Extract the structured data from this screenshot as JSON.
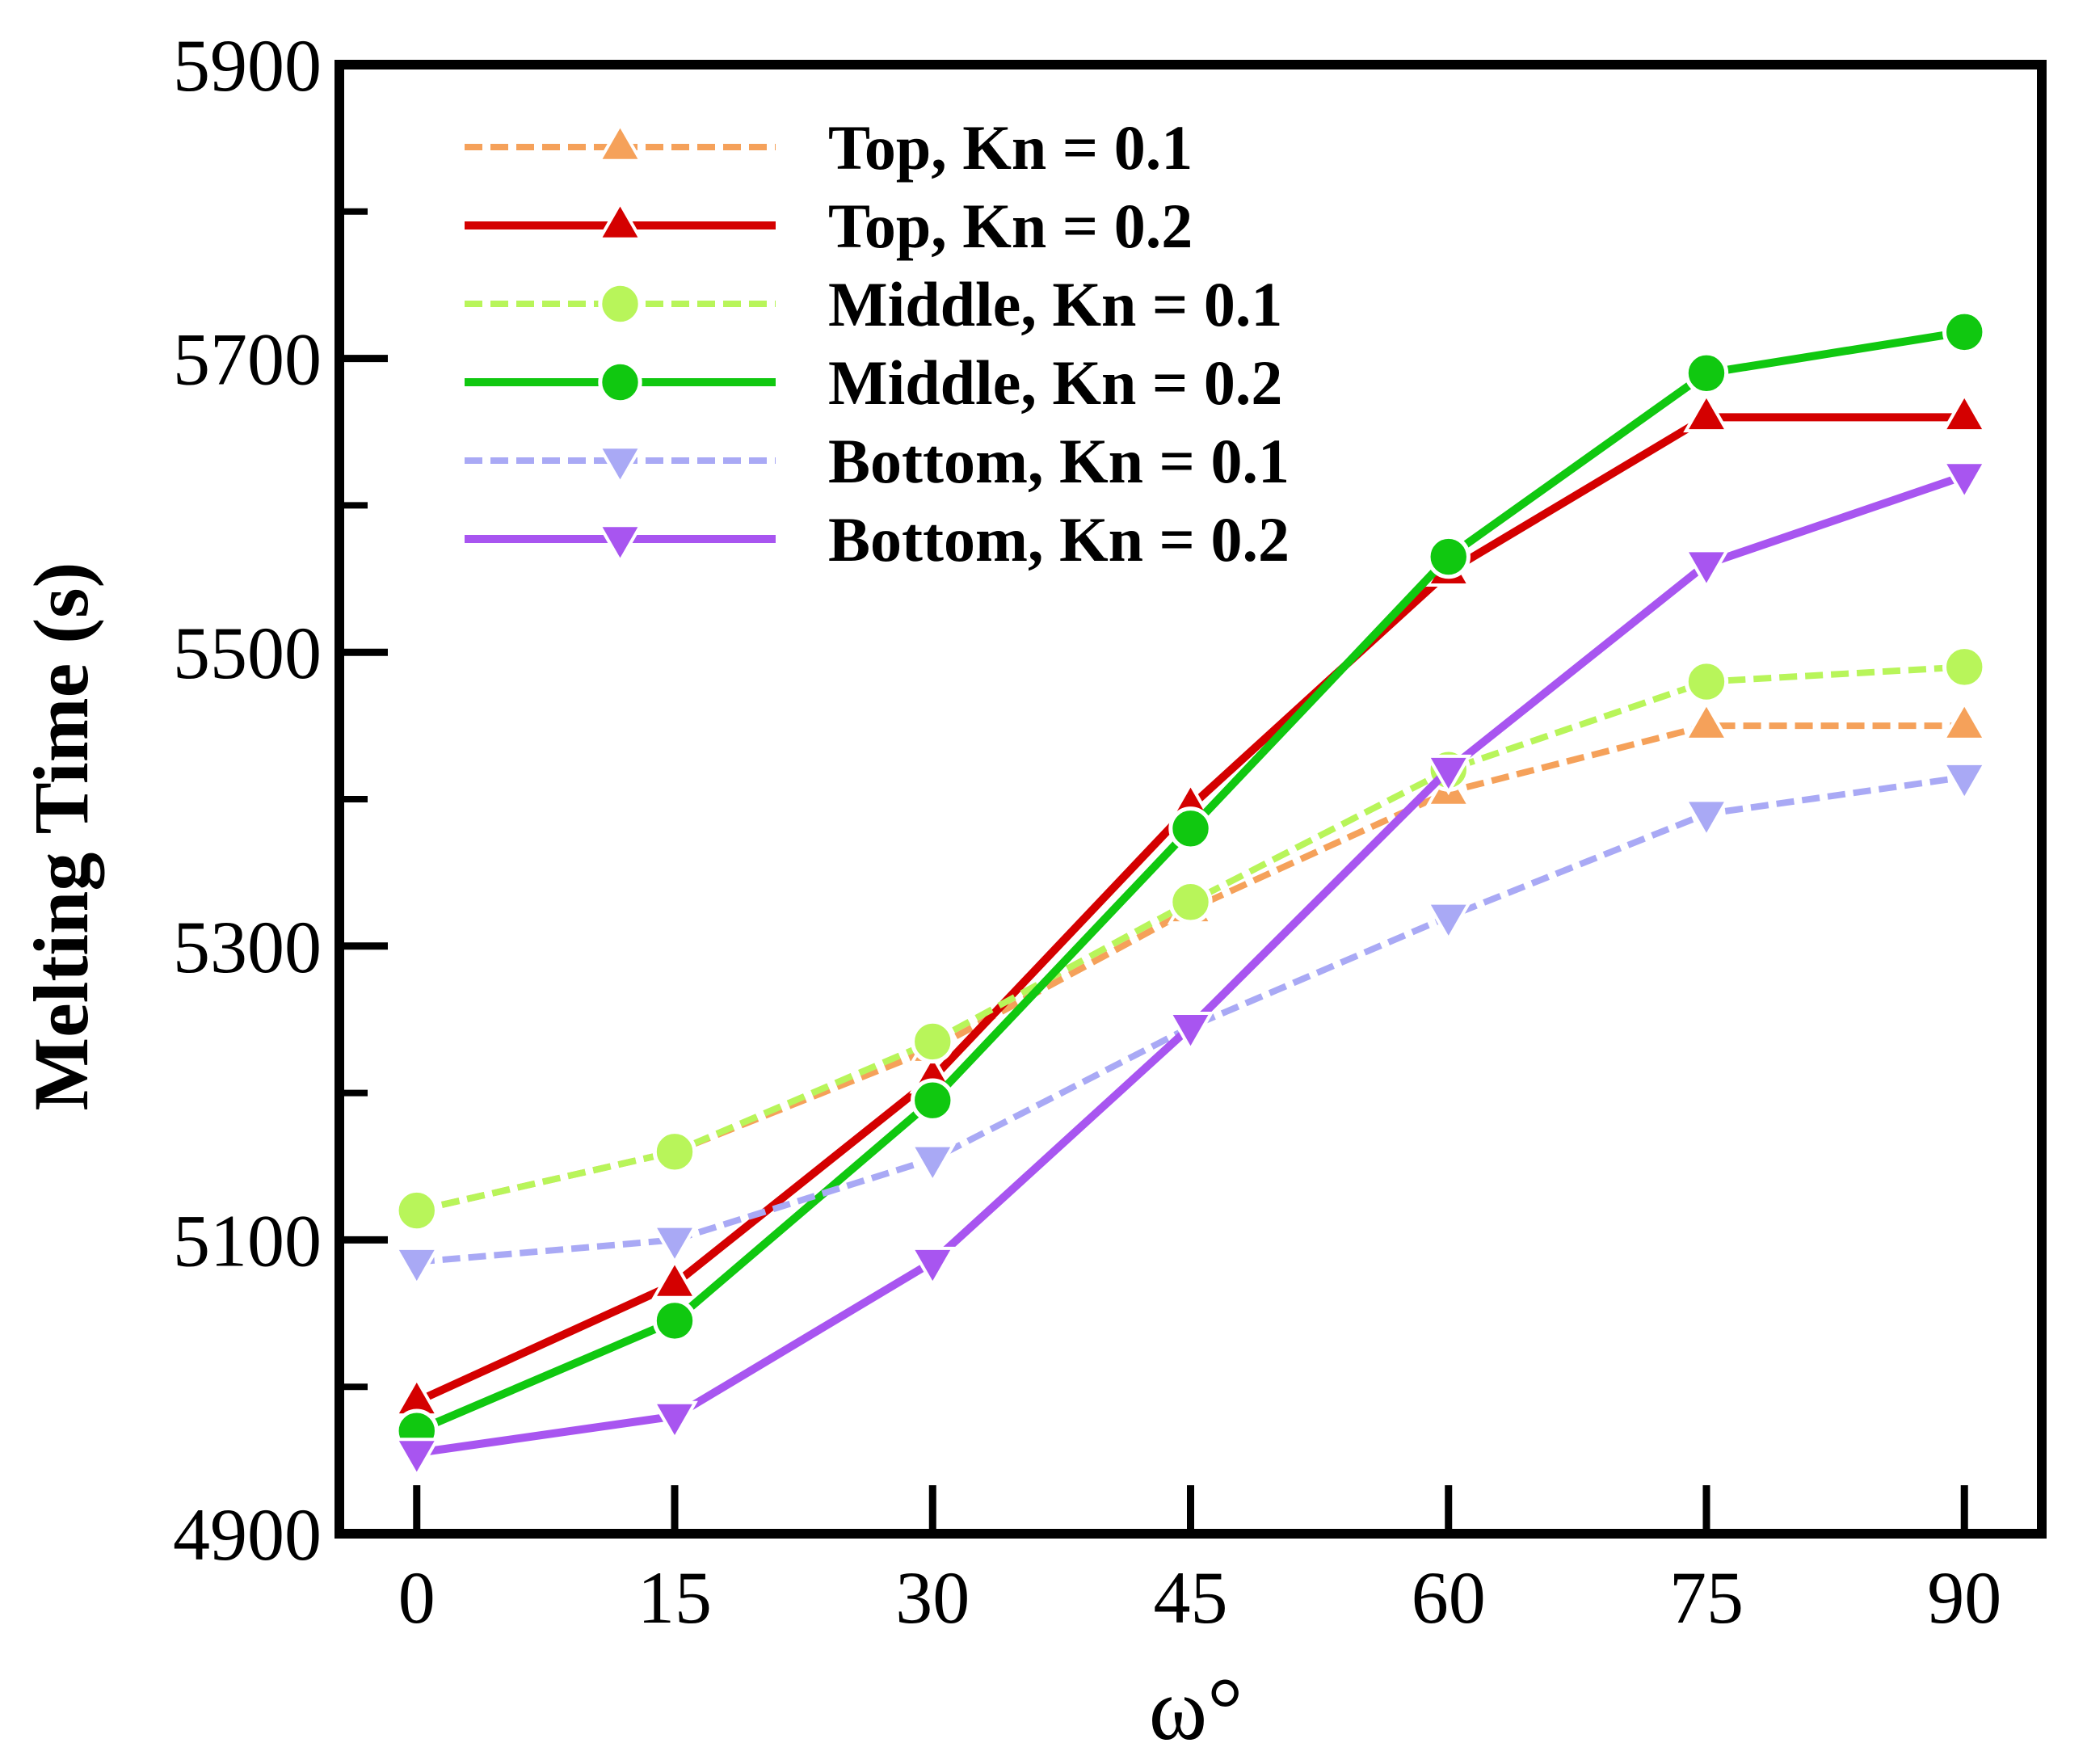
{
  "chart_data": {
    "type": "line",
    "title": "",
    "xlabel": "ω°",
    "ylabel": "Melting Time (s)",
    "x": [
      0,
      15,
      30,
      45,
      60,
      75,
      90
    ],
    "x_ticks": [
      "0",
      "15",
      "30",
      "45",
      "60",
      "75",
      "90"
    ],
    "xlim": [
      -4.5,
      94.5
    ],
    "y_ticks": [
      "4900",
      "5100",
      "5300",
      "5500",
      "5700",
      "5900"
    ],
    "ylim": [
      4900,
      5900
    ],
    "grid": false,
    "legend_position": "top-left",
    "series": [
      {
        "name": "Top, Kn = 0.1",
        "color": "#F5A15A",
        "dashed": true,
        "marker": "triangle-up",
        "values": [
          5120,
          5160,
          5230,
          5325,
          5405,
          5450,
          5450
        ]
      },
      {
        "name": "Top, Kn = 0.2",
        "color": "#D40000",
        "dashed": false,
        "marker": "triangle-up",
        "values": [
          4990,
          5070,
          5210,
          5395,
          5555,
          5660,
          5660
        ]
      },
      {
        "name": "Middle, Kn = 0.1",
        "color": "#B8F55A",
        "dashed": true,
        "marker": "circle",
        "values": [
          5120,
          5160,
          5235,
          5330,
          5420,
          5480,
          5490
        ]
      },
      {
        "name": "Middle, Kn = 0.2",
        "color": "#10C810",
        "dashed": false,
        "marker": "circle",
        "values": [
          4970,
          5045,
          5195,
          5380,
          5565,
          5690,
          5718
        ]
      },
      {
        "name": "Bottom, Kn = 0.1",
        "color": "#A9A9F5",
        "dashed": true,
        "marker": "triangle-down",
        "values": [
          5085,
          5100,
          5155,
          5245,
          5320,
          5390,
          5415
        ]
      },
      {
        "name": "Bottom, Kn = 0.2",
        "color": "#A855F0",
        "dashed": false,
        "marker": "triangle-down",
        "values": [
          4955,
          4980,
          5085,
          5245,
          5420,
          5560,
          5620
        ]
      }
    ]
  }
}
